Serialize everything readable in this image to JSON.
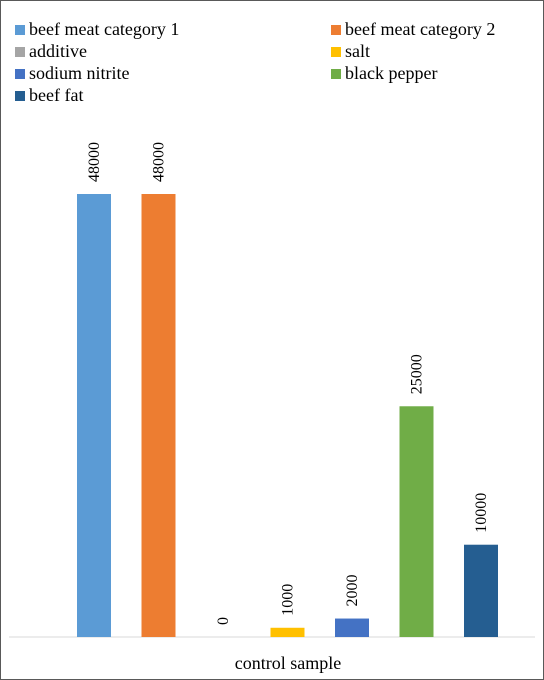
{
  "chart_data": {
    "type": "bar",
    "categories": [
      "control sample"
    ],
    "series": [
      {
        "name": "beef meat category 1",
        "values": [
          48000
        ],
        "color": "#5B9BD5"
      },
      {
        "name": "beef meat category 2",
        "values": [
          48000
        ],
        "color": "#ED7D31"
      },
      {
        "name": "additive",
        "values": [
          0
        ],
        "color": "#A5A5A5"
      },
      {
        "name": "salt",
        "values": [
          1000
        ],
        "color": "#FFC000"
      },
      {
        "name": "sodium nitrite",
        "values": [
          2000
        ],
        "color": "#4472C4"
      },
      {
        "name": "black pepper",
        "values": [
          25000
        ],
        "color": "#70AD47"
      },
      {
        "name": "beef fat",
        "values": [
          10000
        ],
        "color": "#255E91"
      }
    ],
    "data_labels": [
      "48000",
      "48000",
      "0",
      "1000",
      "2000",
      "25000",
      "10000"
    ],
    "ylim": [
      0,
      48000
    ],
    "grid": false,
    "legend": "top"
  }
}
